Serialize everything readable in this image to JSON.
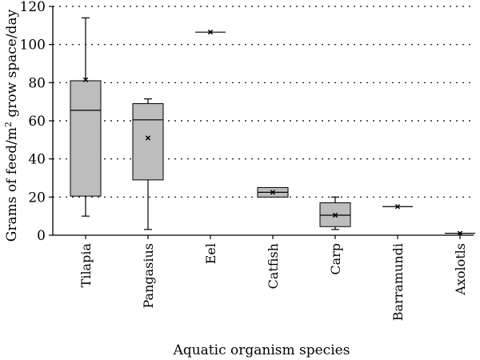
{
  "chart_data": {
    "type": "boxplot",
    "title": "",
    "xlabel": "Aquatic organism species",
    "ylabel": "Grams of feed/m² grow space/day",
    "ylim": [
      0,
      120
    ],
    "yticks": [
      0,
      20,
      40,
      60,
      80,
      100,
      120
    ],
    "grid": "horizontal dotted",
    "categories": [
      "Tilapia",
      "Pangasius",
      "Eel",
      "Catfish",
      "Carp",
      "Barramundi",
      "Axolotls"
    ],
    "series": [
      {
        "category": "Tilapia",
        "min": 10,
        "q1": 20.5,
        "median": 65.5,
        "q3": 81,
        "max": 114,
        "mean": 81.5
      },
      {
        "category": "Pangasius",
        "min": 3,
        "q1": 29,
        "median": 60.5,
        "q3": 69,
        "max": 71.5,
        "mean": 51
      },
      {
        "category": "Eel",
        "min": 106.5,
        "q1": 106.5,
        "median": 106.5,
        "q3": 106.5,
        "max": 106.5,
        "mean": 106.5
      },
      {
        "category": "Catfish",
        "min": 20,
        "q1": 20,
        "median": 22.5,
        "q3": 25,
        "max": 25,
        "mean": 22.5
      },
      {
        "category": "Carp",
        "min": 3,
        "q1": 4.5,
        "median": 10.5,
        "q3": 17,
        "max": 20,
        "mean": 10.5
      },
      {
        "category": "Barramundi",
        "min": 15,
        "q1": 15,
        "median": 15,
        "q3": 15,
        "max": 15,
        "mean": 15
      },
      {
        "category": "Axolotls",
        "min": 1,
        "q1": 1,
        "median": 1,
        "q3": 1,
        "max": 1,
        "mean": 1
      }
    ],
    "colors": {
      "box_fill": "#bdbdbd",
      "line": "#000000"
    },
    "mean_marker": "x"
  }
}
